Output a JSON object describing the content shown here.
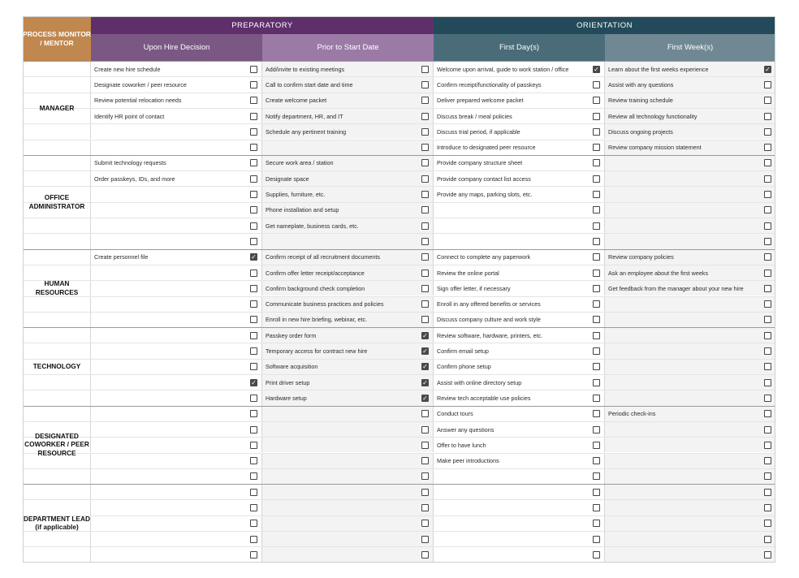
{
  "header": {
    "process_label": "PROCESS MONITOR / MENTOR",
    "groups": [
      {
        "label": "PREPARATORY",
        "color": "#5f2f6c"
      },
      {
        "label": "ORIENTATION",
        "color": "#234a5a"
      }
    ],
    "columns": [
      {
        "label": "Upon Hire Decision",
        "color": "#7a5883"
      },
      {
        "label": "Prior to Start Date",
        "color": "#9b7aa6"
      },
      {
        "label": "First Day(s)",
        "color": "#4a6c79"
      },
      {
        "label": "First Week(s)",
        "color": "#708893"
      }
    ],
    "process_color": "#c0874e"
  },
  "sections": [
    {
      "role": "MANAGER",
      "rows": [
        [
          {
            "t": "Create new hire schedule",
            "c": false
          },
          {
            "t": "Add/invite to existing meetings",
            "c": false
          },
          {
            "t": "Welcome upon arrival, guide to work station / office",
            "c": true
          },
          {
            "t": "Learn about the first weeks experience",
            "c": true
          }
        ],
        [
          {
            "t": "Designate coworker / peer resource",
            "c": false
          },
          {
            "t": "Call to confirm start date and time",
            "c": false
          },
          {
            "t": "Confirm receipt/functionality of passkeys",
            "c": false
          },
          {
            "t": "Assist with any questions",
            "c": false
          }
        ],
        [
          {
            "t": "Review potential relocation needs",
            "c": false
          },
          {
            "t": "Create welcome packet",
            "c": false
          },
          {
            "t": "Deliver prepared welcome packet",
            "c": false
          },
          {
            "t": "Review training schedule",
            "c": false
          }
        ],
        [
          {
            "t": "Identify HR point of contact",
            "c": false
          },
          {
            "t": "Notify department, HR, and IT",
            "c": false
          },
          {
            "t": "Discuss break / meal policies",
            "c": false
          },
          {
            "t": "Review all technology functionality",
            "c": false
          }
        ],
        [
          {
            "t": "",
            "c": false
          },
          {
            "t": "Schedule any pertinent training",
            "c": false
          },
          {
            "t": "Discuss trial period, if applicable",
            "c": false
          },
          {
            "t": "Discuss ongoing projects",
            "c": false
          }
        ],
        [
          {
            "t": "",
            "c": false
          },
          {
            "t": "",
            "c": false
          },
          {
            "t": "Introduce to designated peer resource",
            "c": false
          },
          {
            "t": "Review company mission statement",
            "c": false
          }
        ]
      ]
    },
    {
      "role": "OFFICE ADMINISTRATOR",
      "rows": [
        [
          {
            "t": "Submit technology requests",
            "c": false
          },
          {
            "t": "Secure work area / station",
            "c": false
          },
          {
            "t": "Provide company structure sheet",
            "c": false
          },
          {
            "t": "",
            "c": false
          }
        ],
        [
          {
            "t": "Order passkeys, IDs, and more",
            "c": false
          },
          {
            "t": "Designate space",
            "c": false
          },
          {
            "t": "Provide company contact list access",
            "c": false
          },
          {
            "t": "",
            "c": false
          }
        ],
        [
          {
            "t": "",
            "c": false
          },
          {
            "t": "Supplies, furniture, etc.",
            "c": false
          },
          {
            "t": "Provide any maps, parking slots, etc.",
            "c": false
          },
          {
            "t": "",
            "c": false
          }
        ],
        [
          {
            "t": "",
            "c": false
          },
          {
            "t": "Phone installation and setup",
            "c": false
          },
          {
            "t": "",
            "c": false
          },
          {
            "t": "",
            "c": false
          }
        ],
        [
          {
            "t": "",
            "c": false
          },
          {
            "t": "Get nameplate, business cards, etc.",
            "c": false
          },
          {
            "t": "",
            "c": false
          },
          {
            "t": "",
            "c": false
          }
        ],
        [
          {
            "t": "",
            "c": false
          },
          {
            "t": "",
            "c": false
          },
          {
            "t": "",
            "c": false
          },
          {
            "t": "",
            "c": false
          }
        ]
      ]
    },
    {
      "role": "HUMAN RESOURCES",
      "rows": [
        [
          {
            "t": "Create personnel file",
            "c": true
          },
          {
            "t": "Confirm receipt of all recruitment documents",
            "c": false
          },
          {
            "t": "Connect to complete any paperwork",
            "c": false
          },
          {
            "t": "Review company policies",
            "c": false
          }
        ],
        [
          {
            "t": "",
            "c": false
          },
          {
            "t": "Confirm offer letter receipt/acceptance",
            "c": false
          },
          {
            "t": "Review the online portal",
            "c": false
          },
          {
            "t": "Ask an employee about the first weeks",
            "c": false
          }
        ],
        [
          {
            "t": "",
            "c": false
          },
          {
            "t": "Confirm background check completion",
            "c": false
          },
          {
            "t": "Sign offer letter, if necessary",
            "c": false
          },
          {
            "t": "Get feedback from the manager about your new hire",
            "c": false
          }
        ],
        [
          {
            "t": "",
            "c": false
          },
          {
            "t": "Communicate business practices and policies",
            "c": false
          },
          {
            "t": "Enroll in any offered benefits or services",
            "c": false
          },
          {
            "t": "",
            "c": false
          }
        ],
        [
          {
            "t": "",
            "c": false
          },
          {
            "t": "Enroll in new hire briefing, webinar, etc.",
            "c": false
          },
          {
            "t": "Discuss company culture and work style",
            "c": false
          },
          {
            "t": "",
            "c": false
          }
        ]
      ]
    },
    {
      "role": "TECHNOLOGY",
      "rows": [
        [
          {
            "t": "",
            "c": false
          },
          {
            "t": "Passkey order form",
            "c": true
          },
          {
            "t": "Review software, hardware, printers, etc.",
            "c": false
          },
          {
            "t": "",
            "c": false
          }
        ],
        [
          {
            "t": "",
            "c": false
          },
          {
            "t": "Temporary access for contract new hire",
            "c": true
          },
          {
            "t": "Confirm email setup",
            "c": false
          },
          {
            "t": "",
            "c": false
          }
        ],
        [
          {
            "t": "",
            "c": false
          },
          {
            "t": "Software acquisition",
            "c": true
          },
          {
            "t": "Confirm phone setup",
            "c": false
          },
          {
            "t": "",
            "c": false
          }
        ],
        [
          {
            "t": "",
            "c": true
          },
          {
            "t": "Print driver setup",
            "c": true
          },
          {
            "t": "Assist with online directory setup",
            "c": false
          },
          {
            "t": "",
            "c": false
          }
        ],
        [
          {
            "t": "",
            "c": false
          },
          {
            "t": "Hardware setup",
            "c": true
          },
          {
            "t": "Review tech acceptable use policies",
            "c": false
          },
          {
            "t": "",
            "c": false
          }
        ]
      ]
    },
    {
      "role": "DESIGNATED COWORKER / PEER RESOURCE",
      "rows": [
        [
          {
            "t": "",
            "c": false
          },
          {
            "t": "",
            "c": false
          },
          {
            "t": "Conduct tours",
            "c": false
          },
          {
            "t": "Periodic check-ins",
            "c": false
          }
        ],
        [
          {
            "t": "",
            "c": false
          },
          {
            "t": "",
            "c": false
          },
          {
            "t": "Answer any questions",
            "c": false
          },
          {
            "t": "",
            "c": false
          }
        ],
        [
          {
            "t": "",
            "c": false
          },
          {
            "t": "",
            "c": false
          },
          {
            "t": "Offer to have lunch",
            "c": false
          },
          {
            "t": "",
            "c": false
          }
        ],
        [
          {
            "t": "",
            "c": false
          },
          {
            "t": "",
            "c": false
          },
          {
            "t": "Make peer introductions",
            "c": false
          },
          {
            "t": "",
            "c": false
          }
        ],
        [
          {
            "t": "",
            "c": false
          },
          {
            "t": "",
            "c": false
          },
          {
            "t": "",
            "c": false
          },
          {
            "t": "",
            "c": false
          }
        ]
      ]
    },
    {
      "role": "DEPARTMENT LEAD (if applicable)",
      "rows": [
        [
          {
            "t": "",
            "c": false
          },
          {
            "t": "",
            "c": false
          },
          {
            "t": "",
            "c": false
          },
          {
            "t": "",
            "c": false
          }
        ],
        [
          {
            "t": "",
            "c": false
          },
          {
            "t": "",
            "c": false
          },
          {
            "t": "",
            "c": false
          },
          {
            "t": "",
            "c": false
          }
        ],
        [
          {
            "t": "",
            "c": false
          },
          {
            "t": "",
            "c": false
          },
          {
            "t": "",
            "c": false
          },
          {
            "t": "",
            "c": false
          }
        ],
        [
          {
            "t": "",
            "c": false
          },
          {
            "t": "",
            "c": false
          },
          {
            "t": "",
            "c": false
          },
          {
            "t": "",
            "c": false
          }
        ],
        [
          {
            "t": "",
            "c": false
          },
          {
            "t": "",
            "c": false
          },
          {
            "t": "",
            "c": false
          },
          {
            "t": "",
            "c": false
          }
        ]
      ]
    }
  ]
}
